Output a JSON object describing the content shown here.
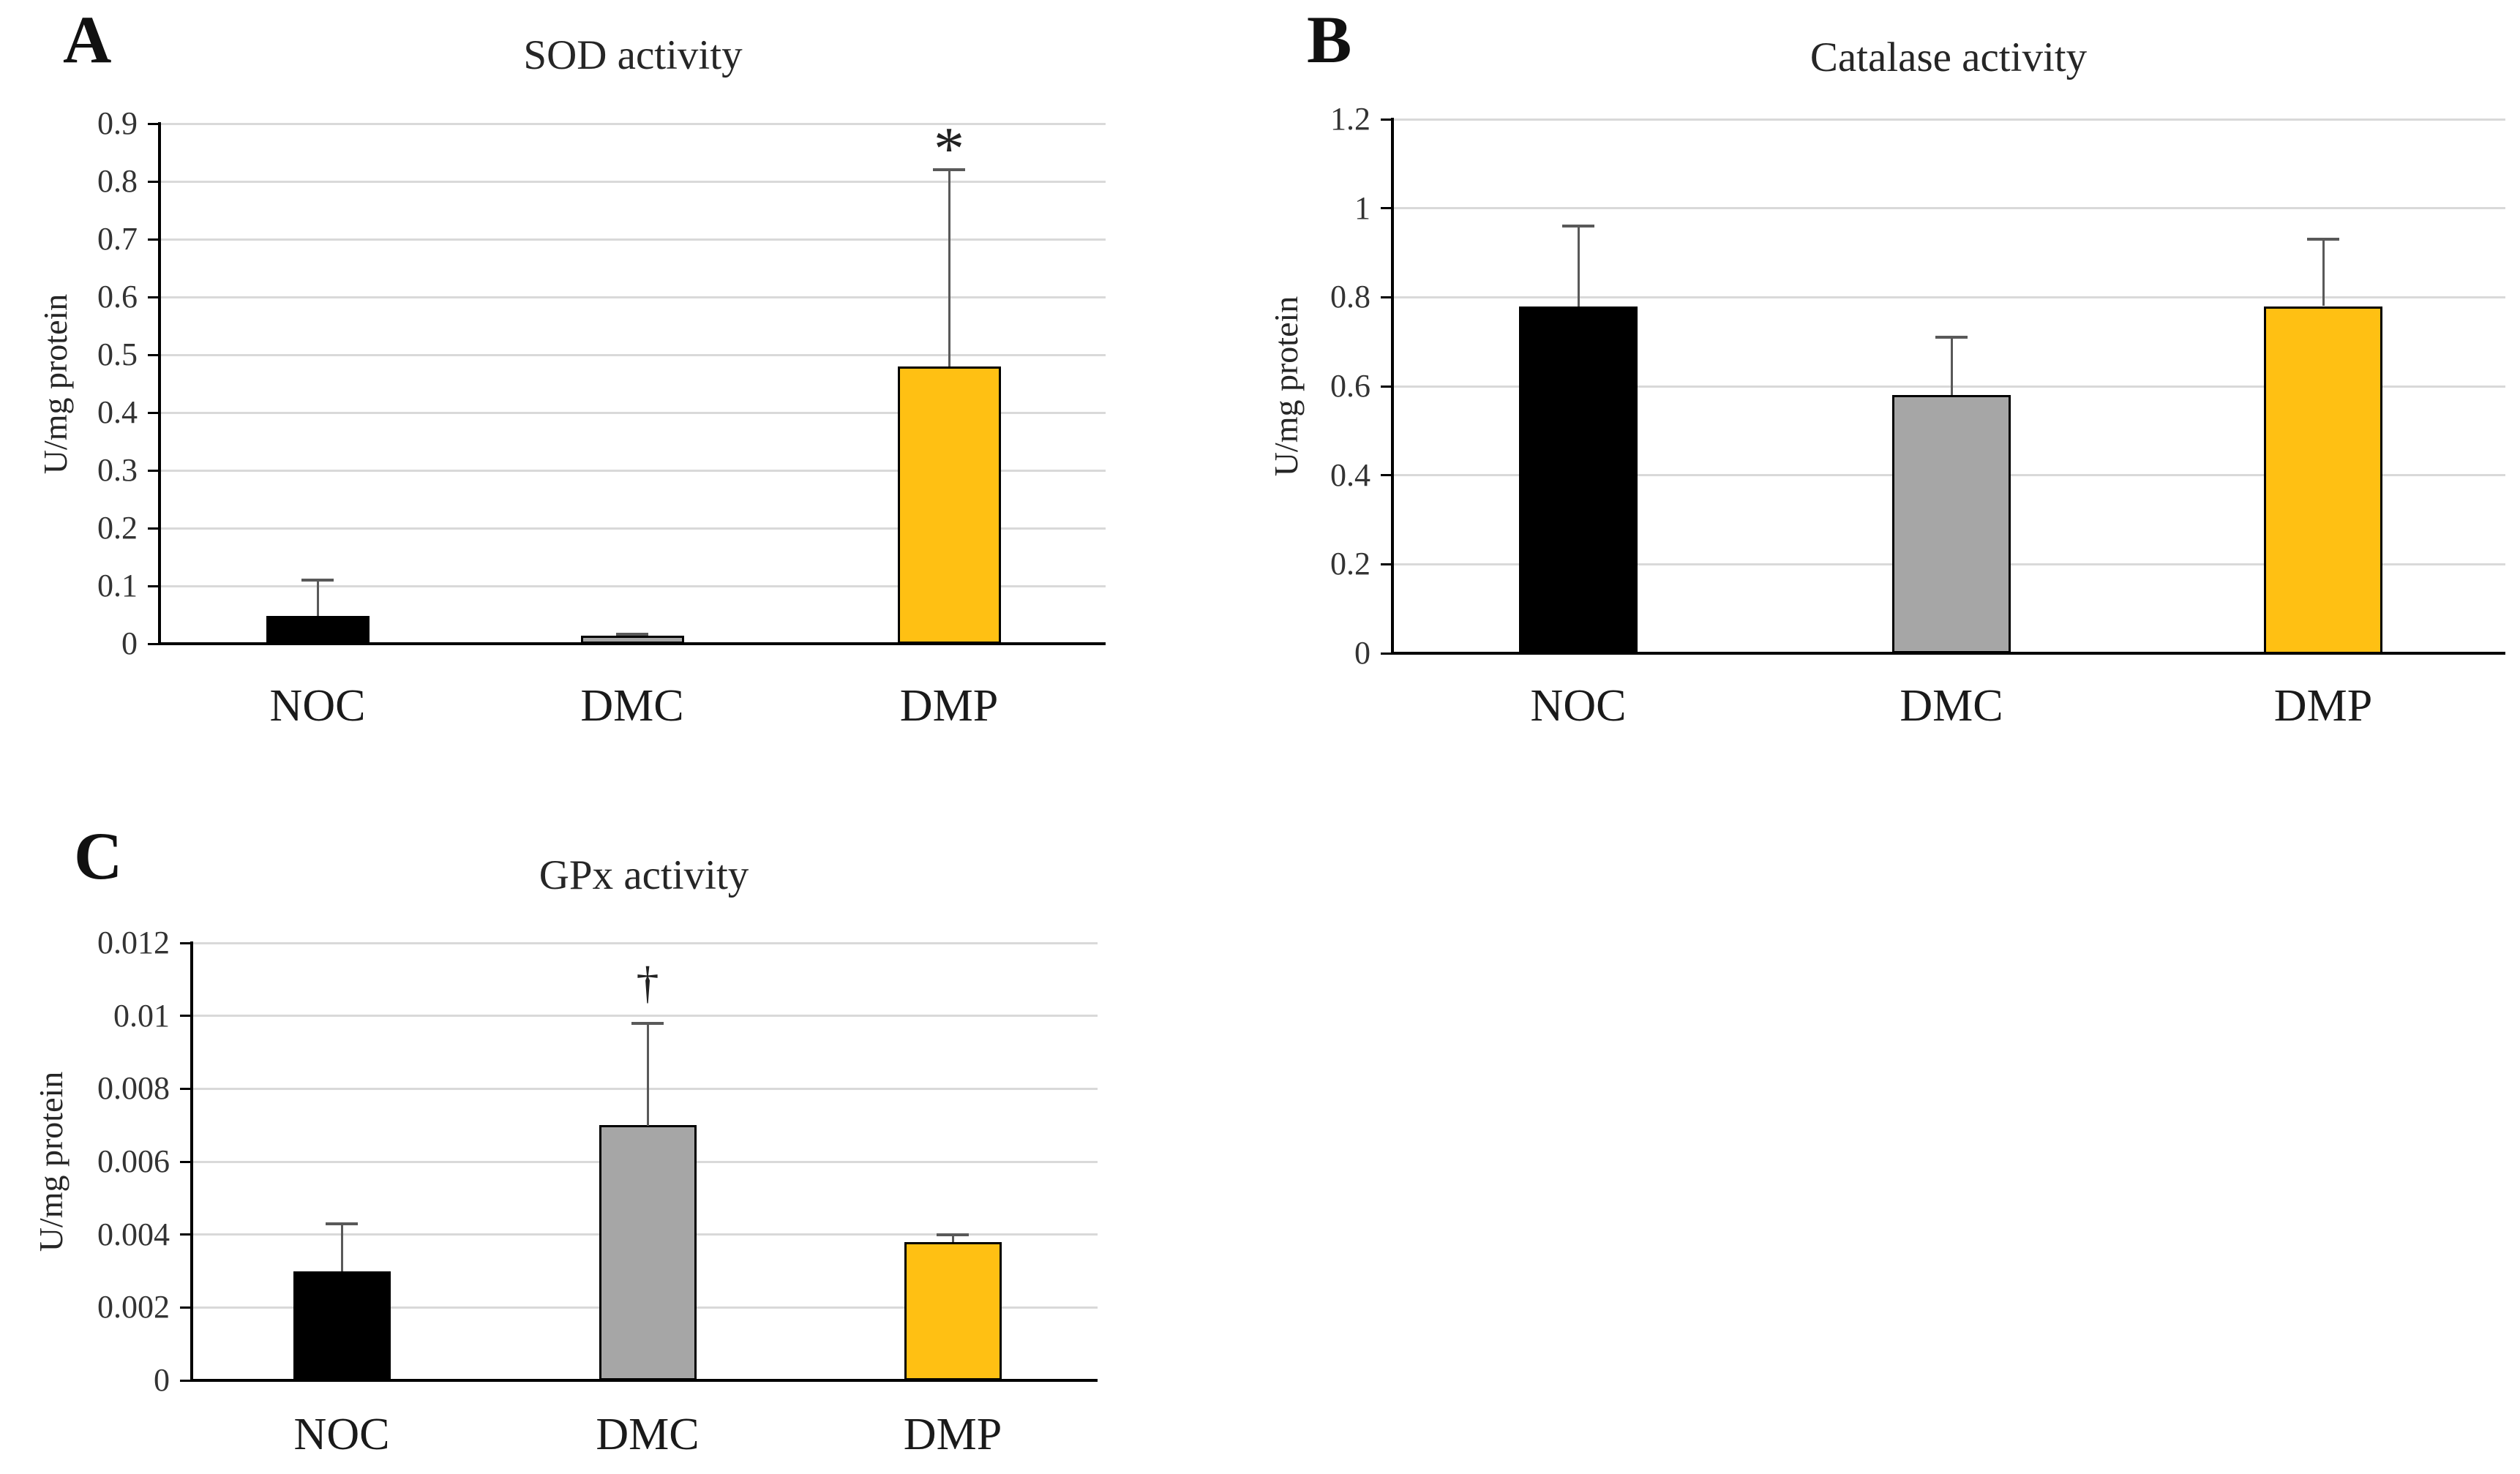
{
  "figure": {
    "description": "Three bar charts of antioxidant enzyme activities",
    "background": "#ffffff"
  },
  "colors": {
    "noc_bar": "#000000",
    "dmc_bar": "#A6A6A6",
    "dmp_bar": "#FFC013",
    "bar_border": "#000000",
    "gridline": "#D9D9D9",
    "axis": "#000000",
    "error_bar": "#595959"
  },
  "panels": [
    {
      "letter": "A",
      "title": "SOD activity",
      "y_axis_label": "U/mg protein",
      "ylim": [
        0,
        0.9
      ],
      "y_ticks": [
        {
          "value": 0,
          "label": "0"
        },
        {
          "value": 0.1,
          "label": "0.1"
        },
        {
          "value": 0.2,
          "label": "0.2"
        },
        {
          "value": 0.3,
          "label": "0.3"
        },
        {
          "value": 0.4,
          "label": "0.4"
        },
        {
          "value": 0.5,
          "label": "0.5"
        },
        {
          "value": 0.6,
          "label": "0.6"
        },
        {
          "value": 0.7,
          "label": "0.7"
        },
        {
          "value": 0.8,
          "label": "0.8"
        },
        {
          "value": 0.9,
          "label": "0.9"
        }
      ],
      "categories": [
        "NOC",
        "DMC",
        "DMP"
      ],
      "bars": [
        {
          "category": "NOC",
          "value": 0.048,
          "error_top": 0.11,
          "color": "#000000"
        },
        {
          "category": "DMC",
          "value": 0.014,
          "error_top": 0.017,
          "color": "#A6A6A6"
        },
        {
          "category": "DMP",
          "value": 0.48,
          "error_top": 0.82,
          "color": "#FFC013"
        }
      ],
      "annotation": {
        "text": "*",
        "category_index": 2
      }
    },
    {
      "letter": "B",
      "title": "Catalase activity",
      "y_axis_label": "U/mg protein",
      "ylim": [
        0,
        1.2
      ],
      "y_ticks": [
        {
          "value": 0,
          "label": "0"
        },
        {
          "value": 0.2,
          "label": "0.2"
        },
        {
          "value": 0.4,
          "label": "0.4"
        },
        {
          "value": 0.6,
          "label": "0.6"
        },
        {
          "value": 0.8,
          "label": "0.8"
        },
        {
          "value": 1,
          "label": "1"
        },
        {
          "value": 1.2,
          "label": "1.2"
        }
      ],
      "categories": [
        "NOC",
        "DMC",
        "DMP"
      ],
      "bars": [
        {
          "category": "NOC",
          "value": 0.78,
          "error_top": 0.96,
          "color": "#000000"
        },
        {
          "category": "DMC",
          "value": 0.58,
          "error_top": 0.71,
          "color": "#A6A6A6"
        },
        {
          "category": "DMP",
          "value": 0.78,
          "error_top": 0.93,
          "color": "#FFC013"
        }
      ],
      "annotation": null
    },
    {
      "letter": "C",
      "title": "GPx activity",
      "y_axis_label": "U/mg protein",
      "ylim": [
        0,
        0.012
      ],
      "y_ticks": [
        {
          "value": 0,
          "label": "0"
        },
        {
          "value": 0.002,
          "label": "0.002"
        },
        {
          "value": 0.004,
          "label": "0.004"
        },
        {
          "value": 0.006,
          "label": "0.006"
        },
        {
          "value": 0.008,
          "label": "0.008"
        },
        {
          "value": 0.01,
          "label": "0.01"
        },
        {
          "value": 0.012,
          "label": "0.012"
        }
      ],
      "categories": [
        "NOC",
        "DMC",
        "DMP"
      ],
      "bars": [
        {
          "category": "NOC",
          "value": 0.003,
          "error_top": 0.0043,
          "color": "#000000"
        },
        {
          "category": "DMC",
          "value": 0.007,
          "error_top": 0.0098,
          "color": "#A6A6A6"
        },
        {
          "category": "DMP",
          "value": 0.0038,
          "error_top": 0.004,
          "color": "#FFC013"
        }
      ],
      "annotation": {
        "text": "†",
        "category_index": 1
      }
    }
  ],
  "chart_data": [
    {
      "type": "bar",
      "title": "SOD activity",
      "xlabel": "",
      "ylabel": "U/mg protein",
      "categories": [
        "NOC",
        "DMC",
        "DMP"
      ],
      "values": [
        0.048,
        0.014,
        0.48
      ],
      "error_upper": [
        0.062,
        0.003,
        0.34
      ],
      "ylim": [
        0,
        0.9
      ],
      "ytick_step": 0.1,
      "grid": true,
      "legend_position": "none",
      "bar_colors": [
        "#000000",
        "#A6A6A6",
        "#FFC013"
      ],
      "annotations": [
        {
          "text": "*",
          "category": "DMP",
          "meaning": "significance marker above error bar"
        }
      ]
    },
    {
      "type": "bar",
      "title": "Catalase activity",
      "xlabel": "",
      "ylabel": "U/mg protein",
      "categories": [
        "NOC",
        "DMC",
        "DMP"
      ],
      "values": [
        0.78,
        0.58,
        0.78
      ],
      "error_upper": [
        0.18,
        0.13,
        0.15
      ],
      "ylim": [
        0,
        1.2
      ],
      "ytick_step": 0.2,
      "grid": true,
      "legend_position": "none",
      "bar_colors": [
        "#000000",
        "#A6A6A6",
        "#FFC013"
      ],
      "annotations": []
    },
    {
      "type": "bar",
      "title": "GPx activity",
      "xlabel": "",
      "ylabel": "U/mg protein",
      "categories": [
        "NOC",
        "DMC",
        "DMP"
      ],
      "values": [
        0.003,
        0.007,
        0.0038
      ],
      "error_upper": [
        0.0013,
        0.0028,
        0.0002
      ],
      "ylim": [
        0,
        0.012
      ],
      "ytick_step": 0.002,
      "grid": true,
      "legend_position": "none",
      "bar_colors": [
        "#000000",
        "#A6A6A6",
        "#FFC013"
      ],
      "annotations": [
        {
          "text": "†",
          "category": "DMC",
          "meaning": "significance marker above error bar"
        }
      ]
    }
  ]
}
